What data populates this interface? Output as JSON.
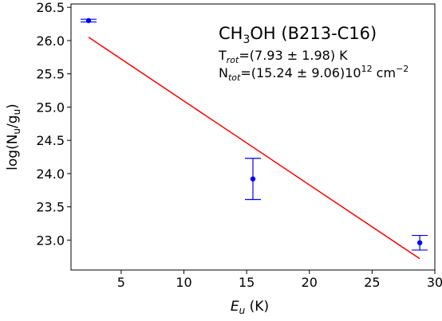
{
  "chart_data": {
    "type": "scatter",
    "xlabel": {
      "main": "E",
      "sub": "u",
      "unit": " (K)"
    },
    "ylabel": {
      "main": "log(N",
      "sub": "u",
      "mid": "/g",
      "sub2": "u",
      "end": ")"
    },
    "xlim": [
      1,
      30
    ],
    "ylim": [
      22.55,
      26.55
    ],
    "xticks": [
      5,
      10,
      15,
      20,
      25,
      30
    ],
    "yticks": [
      23.0,
      23.5,
      24.0,
      24.5,
      25.0,
      25.5,
      26.0,
      26.5
    ],
    "xtick_labels": [
      "5",
      "10",
      "15",
      "20",
      "25",
      "30"
    ],
    "ytick_labels": [
      "23.0",
      "23.5",
      "24.0",
      "24.5",
      "25.0",
      "25.5",
      "26.0",
      "26.5"
    ],
    "points": [
      {
        "x": 2.4,
        "y": 26.3,
        "err": 0.02,
        "color": "#0000ff"
      },
      {
        "x": 15.5,
        "y": 23.92,
        "err": 0.31,
        "color": "#0000ff"
      },
      {
        "x": 28.8,
        "y": 22.96,
        "err": 0.11,
        "color": "#0000ff"
      }
    ],
    "fit_line": {
      "x": [
        2.4,
        28.8
      ],
      "y": [
        26.05,
        22.72
      ],
      "color": "#ff0000"
    },
    "annotation": {
      "title": {
        "a": "CH",
        "sub": "3",
        "b": "OH (B213-C16)"
      },
      "line1": {
        "a": "T",
        "sub": "rot",
        "b": "=(7.93 ± 1.98) K"
      },
      "line2": {
        "a": "N",
        "sub": "tot",
        "b": "=(15.24 ± 9.06)10",
        "sup": "12",
        "c": " cm",
        "sup2": "−2"
      }
    },
    "grid": false
  }
}
